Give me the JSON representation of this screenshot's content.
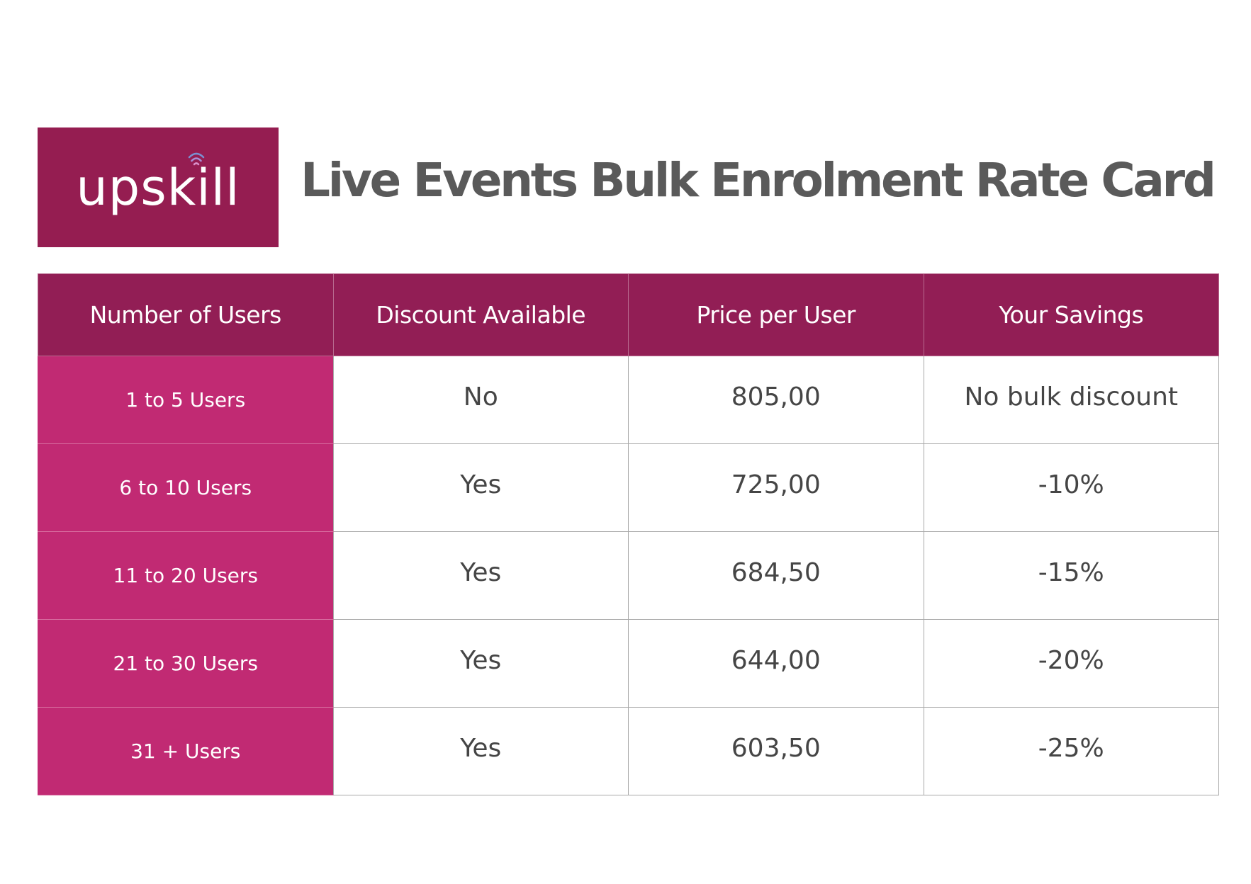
{
  "brand": {
    "logo_text": "upskill",
    "color": "#951d51"
  },
  "title": "Live Events Bulk Enrolment Rate Card",
  "colors": {
    "header_bg": "#921e55",
    "row_label_bg": "#c12a73",
    "title_text": "#5a5a5a"
  },
  "table": {
    "headers": [
      "Number of Users",
      "Discount Available",
      "Price per User",
      "Your Savings"
    ],
    "rows": [
      {
        "users": "1 to 5 Users",
        "discount": "No",
        "price": "805,00",
        "savings": "No bulk discount"
      },
      {
        "users": "6 to 10 Users",
        "discount": "Yes",
        "price": "725,00",
        "savings": "-10%"
      },
      {
        "users": "11 to 20 Users",
        "discount": "Yes",
        "price": "684,50",
        "savings": "-15%"
      },
      {
        "users": "21 to 30 Users",
        "discount": "Yes",
        "price": "644,00",
        "savings": "-20%"
      },
      {
        "users": "31 + Users",
        "discount": "Yes",
        "price": "603,50",
        "savings": "-25%"
      }
    ]
  }
}
